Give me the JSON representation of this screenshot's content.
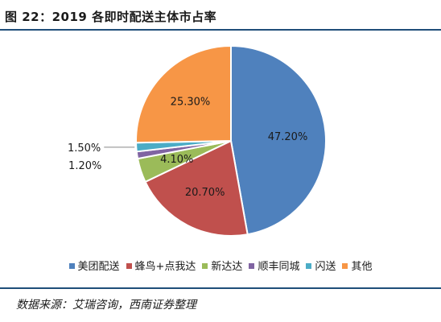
{
  "title": "图 22：2019 各即时配送主体市占率",
  "source": "数据来源：艾瑞咨询，西南证券整理",
  "colors": {
    "rule": "#1f4e79"
  },
  "chart_data": {
    "type": "pie",
    "title": "图 22：2019 各即时配送主体市占率",
    "legend_position": "bottom",
    "slices": [
      {
        "label": "美团配送",
        "value": 47.2,
        "display": "47.20%",
        "color": "#4f81bd"
      },
      {
        "label": "蜂鸟+点我达",
        "value": 20.7,
        "display": "20.70%",
        "color": "#c0504d"
      },
      {
        "label": "新达达",
        "value": 4.1,
        "display": "4.10%",
        "color": "#9bbb59"
      },
      {
        "label": "顺丰同城",
        "value": 1.2,
        "display": "1.20%",
        "color": "#8064a2"
      },
      {
        "label": "闪送",
        "value": 1.5,
        "display": "1.50%",
        "color": "#4bacc6"
      },
      {
        "label": "其他",
        "value": 25.3,
        "display": "25.30%",
        "color": "#f79646"
      }
    ]
  }
}
